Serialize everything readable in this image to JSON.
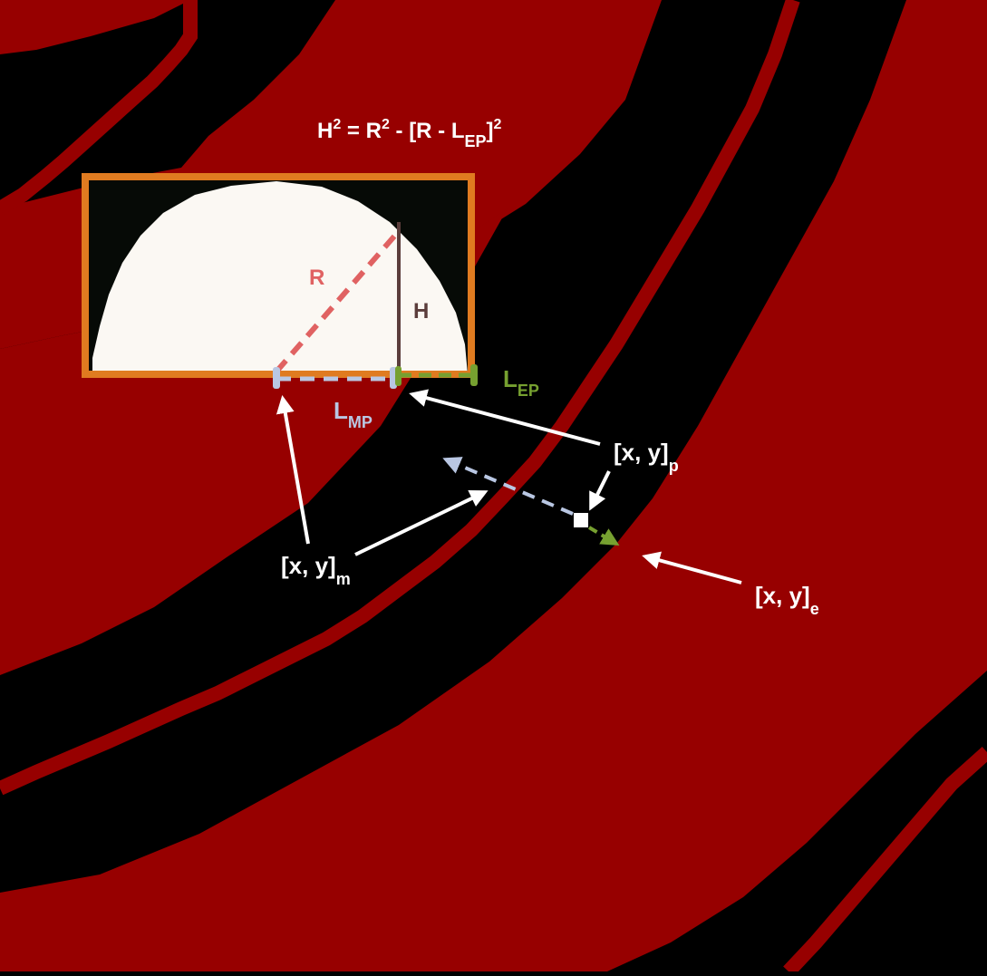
{
  "figure": {
    "equation": {
      "H": "H",
      "sq1": "2",
      "eq": " = ",
      "R": "R",
      "sq2": "2",
      "minus": " - [R - L",
      "sub": "EP",
      "close": "]",
      "sq3": "2"
    },
    "labels": {
      "r": "R",
      "h": "H",
      "lep_main": "L",
      "lep_sub": "EP",
      "lmp_main": "L",
      "lmp_sub": "MP",
      "xyp_main": "[x, y]",
      "xyp_sub": "p",
      "xym_main": "[x, y]",
      "xym_sub": "m",
      "xye_main": "[x, y]",
      "xye_sub": "e"
    },
    "colors": {
      "background": "#000000",
      "band": "#970000",
      "frame": "#e07b20",
      "profile": "#fbf8f3",
      "radius": "#e06262",
      "height": "#5b3d3b",
      "lep": "#76a030",
      "lmp": "#b9c7e3",
      "arrow": "#ffffff"
    }
  }
}
